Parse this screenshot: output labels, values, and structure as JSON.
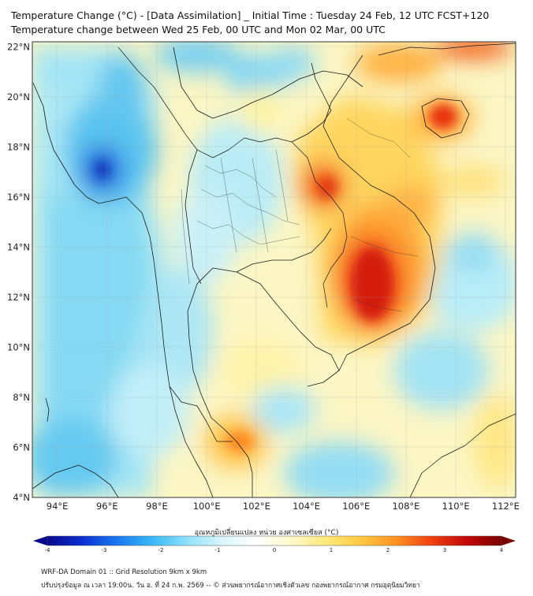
{
  "header": {
    "title_line1": "Temperature Change (°C) - [Data Assimilation] _ Initial Time : Tuesday 24 Feb, 12 UTC FCST+120",
    "title_line2": "Temperature change between Wed 25 Feb, 00 UTC and Mon 02 Mar, 00 UTC"
  },
  "map": {
    "lat_labels": [
      "22°N",
      "20°N",
      "18°N",
      "16°N",
      "14°N",
      "12°N",
      "10°N",
      "8°N",
      "6°N",
      "4°N"
    ],
    "lon_labels": [
      "94°E",
      "96°E",
      "98°E",
      "100°E",
      "102°E",
      "104°E",
      "106°E",
      "108°E",
      "110°E",
      "112°E"
    ],
    "lat_values": [
      22,
      20,
      18,
      16,
      14,
      12,
      10,
      8,
      6,
      4
    ],
    "lon_values": [
      94,
      96,
      98,
      100,
      102,
      104,
      106,
      108,
      110,
      112
    ]
  },
  "colorbar": {
    "title": "อุณหภูมิเปลี่ยนแปลง หน่วย องศาเซลเซียส (°C)",
    "tick_labels": [
      "-4",
      "-3",
      "-2",
      "-1",
      "0",
      "1",
      "2",
      "3",
      "4"
    ],
    "tick_values": [
      -4,
      -3,
      -2,
      -1,
      0,
      1,
      2,
      3,
      4
    ],
    "colors": [
      "#08088a",
      "#0a2fd0",
      "#1a78f0",
      "#38b8f5",
      "#8ee2fa",
      "#d8f6fb",
      "#ffffff",
      "#fff9c8",
      "#ffe978",
      "#ffc842",
      "#ff9020",
      "#f04010",
      "#c20808",
      "#7a0000"
    ]
  },
  "footer": {
    "line1": "WRF-DA Domain 01 :: Grid Resolution 9km x 9km",
    "line2": "ปรับปรุงข้อมูล ณ เวลา 19:00น. วัน อ. ที่ 24 ก.พ. 2569 -- © ส่วนพยากรณ์อากาศเชิงตัวเลข กองพยากรณ์อากาศ กรมอุตุนิยมวิทยา"
  }
}
